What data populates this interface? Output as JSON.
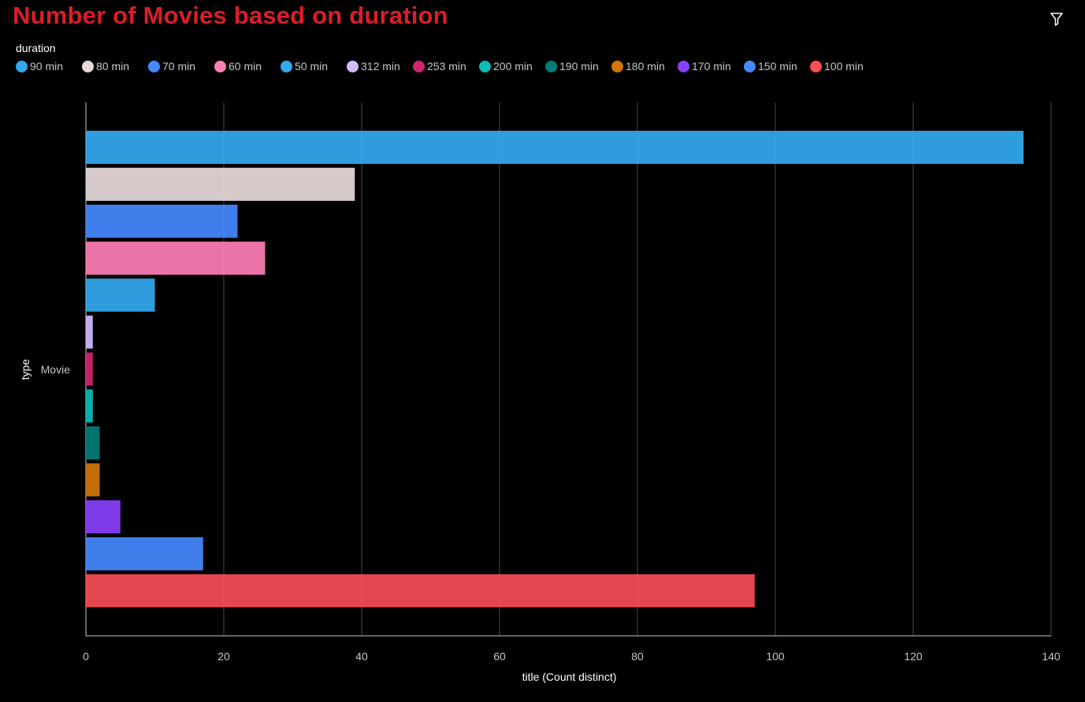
{
  "header": {
    "title": "Number of Movies based on duration"
  },
  "toolbar": {
    "filter_icon": "filter-icon"
  },
  "legend": {
    "title": "duration"
  },
  "chart_data": {
    "type": "bar",
    "orientation": "horizontal",
    "categories": [
      "Movie"
    ],
    "xlabel": "title (Count distinct)",
    "ylabel": "type",
    "xlim": [
      0,
      140
    ],
    "x_ticks": [
      0,
      20,
      40,
      60,
      80,
      100,
      120,
      140
    ],
    "grid": true,
    "legend_position": "top-left",
    "legend_title": "duration",
    "series": [
      {
        "name": "90 min",
        "color": "#33aaf0",
        "values": [
          136
        ]
      },
      {
        "name": "80 min",
        "color": "#e8dada",
        "values": [
          39
        ]
      },
      {
        "name": "70 min",
        "color": "#4589ff",
        "values": [
          22
        ]
      },
      {
        "name": "60 min",
        "color": "#ff7eb6",
        "values": [
          26
        ]
      },
      {
        "name": "50 min",
        "color": "#33aaf0",
        "values": [
          10
        ]
      },
      {
        "name": "312 min",
        "color": "#d4bbff",
        "values": [
          1
        ]
      },
      {
        "name": "253 min",
        "color": "#d02670",
        "values": [
          1
        ]
      },
      {
        "name": "200 min",
        "color": "#08bdba",
        "values": [
          1
        ]
      },
      {
        "name": "190 min",
        "color": "#007d79",
        "values": [
          2
        ]
      },
      {
        "name": "180 min",
        "color": "#d2760a",
        "values": [
          2
        ]
      },
      {
        "name": "170 min",
        "color": "#8a3ffc",
        "values": [
          5
        ]
      },
      {
        "name": "150 min",
        "color": "#4589ff",
        "values": [
          17
        ]
      },
      {
        "name": "100 min",
        "color": "#fa4d56",
        "values": [
          97
        ]
      }
    ]
  }
}
